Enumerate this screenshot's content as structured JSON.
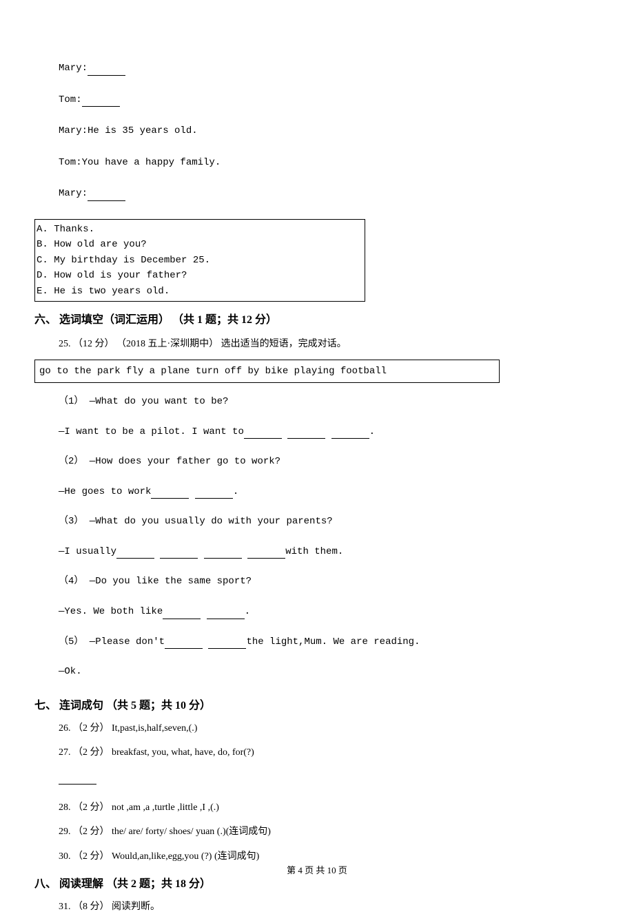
{
  "dialogue": {
    "line1": "Mary:",
    "line2": "Tom:",
    "line3": "Mary:He is 35 years old.",
    "line4": "Tom:You have a happy family.",
    "line5": "Mary:"
  },
  "options": {
    "a": "A. Thanks.",
    "b": "B. How old are you?",
    "c": "C. My birthday is December 25.",
    "d": "D. How old is your father?",
    "e": "E. He is two years old."
  },
  "section6": {
    "title": "六、 选词填空（词汇运用） （共 1 题；共 12 分）",
    "intro": "25. （12 分） （2018 五上·深圳期中） 选出适当的短语，完成对话。",
    "phrases": "go to the park    fly a plane       turn off      by bike    playing football",
    "q1_a": "（1） —What do you want to be?",
    "q1_b_pre": "—I want to be a pilot. I want to",
    "q1_b_post": ".",
    "q2_a": "（2） —How does your father go to work?",
    "q2_b_pre": "—He goes to work",
    "q2_b_post": ".",
    "q3_a": "（3） —What do you usually do with your parents?",
    "q3_b_pre": "—I usually",
    "q3_b_post": "with them.",
    "q4_a": "（4） —Do you like the same sport?",
    "q4_b_pre": "—Yes. We both like",
    "q4_b_post": ".",
    "q5_pre": "（5） —Please don't",
    "q5_post": "the light,Mum. We are reading.",
    "q5_b": "—Ok."
  },
  "section7": {
    "title": "七、 连词成句 （共 5 题；共 10 分）",
    "q26": "26. （2 分） It,past,is,half,seven,(.)",
    "q27": "27. （2 分） breakfast, you, what, have, do, for(?)",
    "q28": "28. （2 分） not ,am ,a ,turtle ,little ,I ,(.)",
    "q29": "29. （2 分） the/ are/ forty/ shoes/ yuan (.)(连词成句)",
    "q30": "30. （2 分） Would,an,like,egg,you   (?)     (连词成句)"
  },
  "section8": {
    "title": "八、 阅读理解 （共 2 题；共 18 分）",
    "q31": "31. （8 分） 阅读判断。"
  },
  "footer": "第 4 页 共 10 页"
}
